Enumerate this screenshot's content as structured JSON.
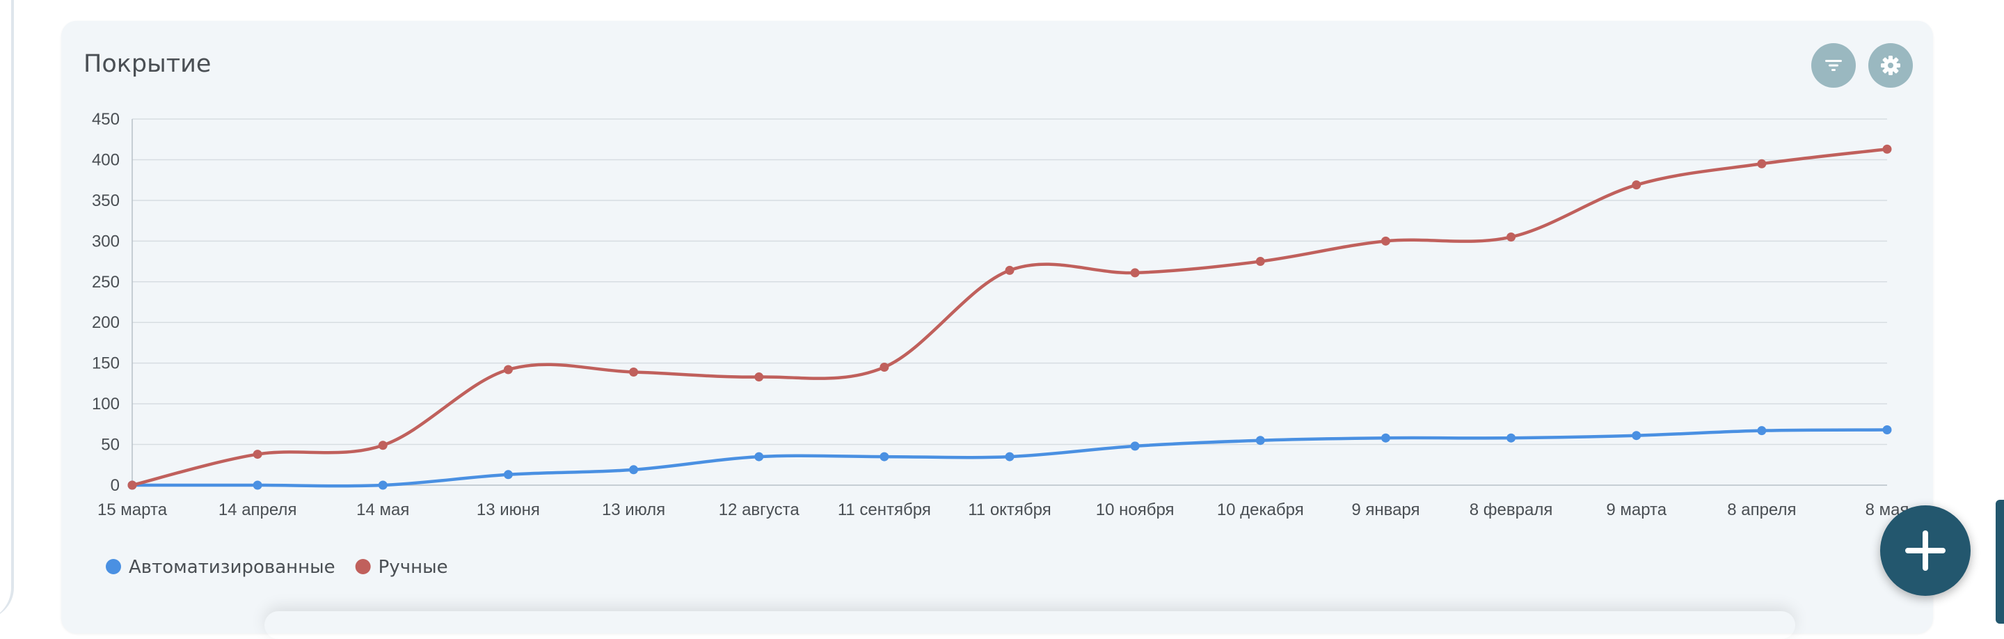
{
  "card": {
    "title": "Покрытие",
    "filter_icon": "filter-icon",
    "settings_icon": "gear-icon"
  },
  "fab": {
    "icon": "plus-icon"
  },
  "colors": {
    "automated": "#4a90e2",
    "manual": "#c0605c",
    "grid": "#d7dde2",
    "axis_text": "#4a4f54",
    "fab": "#23576e",
    "icon_button": "#9ab8c0"
  },
  "chart_data": {
    "type": "line",
    "title": "Покрытие",
    "xlabel": "",
    "ylabel": "",
    "x": [
      "15 марта",
      "14 апреля",
      "14 мая",
      "13 июня",
      "13 июля",
      "12 августа",
      "11 сентября",
      "11 октября",
      "10 ноября",
      "10 декабря",
      "9 января",
      "8 февраля",
      "9 марта",
      "8 апреля",
      "8 мая"
    ],
    "ylim": [
      0,
      450
    ],
    "yticks": [
      0,
      50,
      100,
      150,
      200,
      250,
      300,
      350,
      400,
      450
    ],
    "grid": true,
    "legend": "bottom-left",
    "series": [
      {
        "name": "Автоматизированные",
        "color": "#4a90e2",
        "values": [
          0,
          0,
          0,
          13,
          19,
          35,
          35,
          35,
          48,
          55,
          58,
          58,
          61,
          67,
          68
        ]
      },
      {
        "name": "Ручные",
        "color": "#c0605c",
        "values": [
          0,
          38,
          49,
          142,
          139,
          133,
          145,
          264,
          261,
          275,
          300,
          305,
          369,
          395,
          413
        ]
      }
    ]
  }
}
